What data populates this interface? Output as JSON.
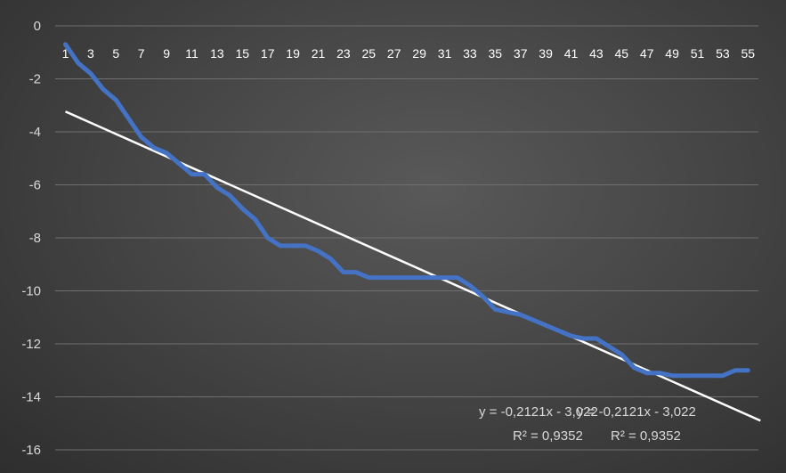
{
  "chart_data": {
    "type": "line",
    "title": "",
    "xlabel": "",
    "ylabel": "",
    "grid": true,
    "legend": "none",
    "xlim": [
      1,
      55
    ],
    "ylim": [
      -16,
      0
    ],
    "y_ticks": [
      0,
      -2,
      -4,
      -6,
      -8,
      -10,
      -12,
      -14,
      -16
    ],
    "x_tick_labels": [
      "1",
      "3",
      "5",
      "7",
      "9",
      "11",
      "13",
      "15",
      "17",
      "19",
      "21",
      "23",
      "25",
      "27",
      "29",
      "31",
      "33",
      "35",
      "37",
      "39",
      "41",
      "43",
      "45",
      "47",
      "49",
      "51",
      "53",
      "55"
    ],
    "x": [
      1,
      2,
      3,
      4,
      5,
      6,
      7,
      8,
      9,
      10,
      11,
      12,
      13,
      14,
      15,
      16,
      17,
      18,
      19,
      20,
      21,
      22,
      23,
      24,
      25,
      26,
      27,
      28,
      29,
      30,
      31,
      32,
      33,
      34,
      35,
      36,
      37,
      38,
      39,
      40,
      41,
      42,
      43,
      44,
      45,
      46,
      47,
      48,
      49,
      50,
      51,
      52,
      53,
      54,
      55
    ],
    "series": [
      {
        "color": "#4472c4",
        "values": [
          -0.7,
          -1.4,
          -1.8,
          -2.4,
          -2.8,
          -3.5,
          -4.2,
          -4.6,
          -4.8,
          -5.2,
          -5.6,
          -5.6,
          -6.1,
          -6.4,
          -6.9,
          -7.3,
          -8.0,
          -8.3,
          -8.3,
          -8.3,
          -8.5,
          -8.8,
          -9.3,
          -9.3,
          -9.5,
          -9.5,
          -9.5,
          -9.5,
          -9.5,
          -9.5,
          -9.5,
          -9.5,
          -9.8,
          -10.2,
          -10.7,
          -10.8,
          -10.9,
          -11.1,
          -11.3,
          -11.5,
          -11.7,
          -11.8,
          -11.8,
          -12.1,
          -12.4,
          -12.9,
          -13.1,
          -13.1,
          -13.2,
          -13.2,
          -13.2,
          -13.2,
          -13.2,
          -13.0,
          -13.0
        ]
      }
    ],
    "trendline": {
      "color": "#ffffff",
      "slope": -0.2121,
      "intercept": -3.022,
      "equation": "y = -0,2121x - 3,022",
      "r_squared": "R² = 0,9352"
    }
  }
}
